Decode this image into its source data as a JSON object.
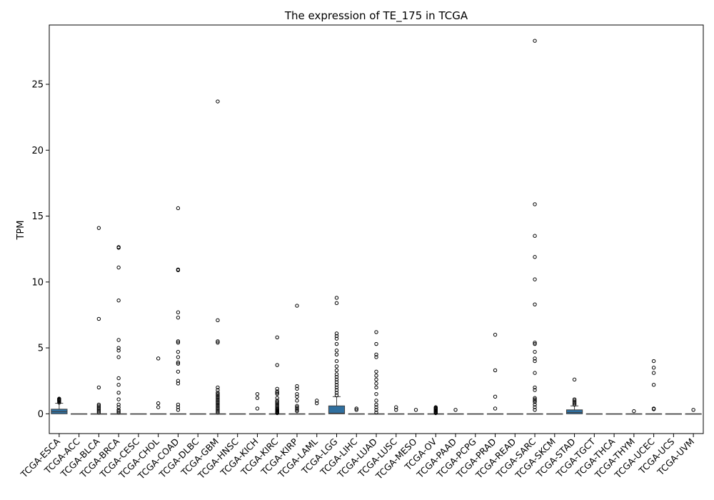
{
  "chart_data": {
    "type": "box",
    "title": "The expression of TE_175 in TCGA",
    "xlabel": "",
    "ylabel": "TPM",
    "ylim": [
      -1.5,
      29.5
    ],
    "yticks": [
      0,
      5,
      10,
      15,
      20,
      25
    ],
    "box_color": "#2f6f9f",
    "categories": [
      "TCGA-ESCA",
      "TCGA-ACC",
      "TCGA-BLCA",
      "TCGA-BRCA",
      "TCGA-CESC",
      "TCGA-CHOL",
      "TCGA-COAD",
      "TCGA-DLBC",
      "TCGA-GBM",
      "TCGA-HNSC",
      "TCGA-KICH",
      "TCGA-KIRC",
      "TCGA-KIRP",
      "TCGA-LAML",
      "TCGA-LGG",
      "TCGA-LIHC",
      "TCGA-LUAD",
      "TCGA-LUSC",
      "TCGA-MESO",
      "TCGA-OV",
      "TCGA-PAAD",
      "TCGA-PCPG",
      "TCGA-PRAD",
      "TCGA-READ",
      "TCGA-SARC",
      "TCGA-SKCM",
      "TCGA-STAD",
      "TCGA-TGCT",
      "TCGA-THCA",
      "TCGA-THYM",
      "TCGA-UCEC",
      "TCGA-UCS",
      "TCGA-UVM"
    ],
    "boxes": [
      {
        "q1": 0.0,
        "median": 0.15,
        "q3": 0.35,
        "whisker_low": 0.0,
        "whisker_high": 0.8
      },
      {
        "q1": 0,
        "median": 0,
        "q3": 0,
        "whisker_low": 0,
        "whisker_high": 0
      },
      {
        "q1": 0,
        "median": 0,
        "q3": 0,
        "whisker_low": 0,
        "whisker_high": 0
      },
      {
        "q1": 0,
        "median": 0,
        "q3": 0,
        "whisker_low": 0,
        "whisker_high": 0
      },
      {
        "q1": 0,
        "median": 0,
        "q3": 0,
        "whisker_low": 0,
        "whisker_high": 0
      },
      {
        "q1": 0,
        "median": 0,
        "q3": 0,
        "whisker_low": 0,
        "whisker_high": 0
      },
      {
        "q1": 0,
        "median": 0,
        "q3": 0,
        "whisker_low": 0,
        "whisker_high": 0
      },
      {
        "q1": 0,
        "median": 0,
        "q3": 0,
        "whisker_low": 0,
        "whisker_high": 0
      },
      {
        "q1": 0,
        "median": 0,
        "q3": 0,
        "whisker_low": 0,
        "whisker_high": 0
      },
      {
        "q1": 0,
        "median": 0,
        "q3": 0,
        "whisker_low": 0,
        "whisker_high": 0
      },
      {
        "q1": 0,
        "median": 0,
        "q3": 0,
        "whisker_low": 0,
        "whisker_high": 0
      },
      {
        "q1": 0,
        "median": 0,
        "q3": 0,
        "whisker_low": 0,
        "whisker_high": 0
      },
      {
        "q1": 0,
        "median": 0,
        "q3": 0,
        "whisker_low": 0,
        "whisker_high": 0
      },
      {
        "q1": 0,
        "median": 0,
        "q3": 0,
        "whisker_low": 0,
        "whisker_high": 0
      },
      {
        "q1": 0.0,
        "median": 0.05,
        "q3": 0.6,
        "whisker_low": 0.0,
        "whisker_high": 1.3
      },
      {
        "q1": 0,
        "median": 0,
        "q3": 0,
        "whisker_low": 0,
        "whisker_high": 0
      },
      {
        "q1": 0,
        "median": 0,
        "q3": 0,
        "whisker_low": 0,
        "whisker_high": 0
      },
      {
        "q1": 0,
        "median": 0,
        "q3": 0,
        "whisker_low": 0,
        "whisker_high": 0
      },
      {
        "q1": 0,
        "median": 0,
        "q3": 0,
        "whisker_low": 0,
        "whisker_high": 0
      },
      {
        "q1": 0,
        "median": 0,
        "q3": 0,
        "whisker_low": 0,
        "whisker_high": 0
      },
      {
        "q1": 0,
        "median": 0,
        "q3": 0,
        "whisker_low": 0,
        "whisker_high": 0
      },
      {
        "q1": 0,
        "median": 0,
        "q3": 0,
        "whisker_low": 0,
        "whisker_high": 0
      },
      {
        "q1": 0,
        "median": 0,
        "q3": 0,
        "whisker_low": 0,
        "whisker_high": 0
      },
      {
        "q1": 0,
        "median": 0,
        "q3": 0,
        "whisker_low": 0,
        "whisker_high": 0
      },
      {
        "q1": 0,
        "median": 0,
        "q3": 0,
        "whisker_low": 0,
        "whisker_high": 0
      },
      {
        "q1": 0,
        "median": 0,
        "q3": 0,
        "whisker_low": 0,
        "whisker_high": 0
      },
      {
        "q1": 0.0,
        "median": 0.1,
        "q3": 0.3,
        "whisker_low": 0.0,
        "whisker_high": 0.6
      },
      {
        "q1": 0,
        "median": 0,
        "q3": 0,
        "whisker_low": 0,
        "whisker_high": 0
      },
      {
        "q1": 0,
        "median": 0,
        "q3": 0,
        "whisker_low": 0,
        "whisker_high": 0
      },
      {
        "q1": 0,
        "median": 0,
        "q3": 0,
        "whisker_low": 0,
        "whisker_high": 0
      },
      {
        "q1": 0,
        "median": 0,
        "q3": 0,
        "whisker_low": 0,
        "whisker_high": 0
      },
      {
        "q1": 0,
        "median": 0,
        "q3": 0,
        "whisker_low": 0,
        "whisker_high": 0
      },
      {
        "q1": 0,
        "median": 0,
        "q3": 0,
        "whisker_low": 0,
        "whisker_high": 0
      }
    ],
    "outliers": [
      [
        0.85,
        0.95,
        1.0,
        1.05,
        1.1,
        1.15
      ],
      [],
      [
        0.1,
        0.2,
        0.3,
        0.4,
        0.5,
        0.6,
        0.7,
        2.0,
        7.2,
        14.1
      ],
      [
        0.1,
        0.2,
        0.3,
        0.5,
        0.7,
        1.1,
        1.6,
        2.2,
        2.7,
        4.3,
        4.8,
        5.0,
        5.6,
        8.6,
        11.1,
        12.6,
        12.65
      ],
      [],
      [
        0.5,
        0.8,
        4.2
      ],
      [
        0.3,
        0.5,
        0.7,
        2.3,
        2.5,
        3.2,
        3.8,
        3.9,
        4.3,
        4.7,
        5.4,
        5.5,
        7.3,
        7.7,
        10.9,
        10.95,
        15.6
      ],
      [],
      [
        0.1,
        0.2,
        0.3,
        0.4,
        0.5,
        0.6,
        0.7,
        0.8,
        0.9,
        1.0,
        1.1,
        1.2,
        1.3,
        1.4,
        1.5,
        1.6,
        1.8,
        2.0,
        5.4,
        5.5,
        7.1,
        23.7
      ],
      [],
      [
        0.4,
        1.2,
        1.5
      ],
      [
        0.05,
        0.1,
        0.15,
        0.2,
        0.25,
        0.3,
        0.35,
        0.4,
        0.5,
        0.6,
        0.7,
        0.8,
        0.9,
        1.0,
        1.2,
        1.5,
        1.6,
        1.7,
        1.9,
        3.7,
        5.8
      ],
      [
        0.2,
        0.3,
        0.4,
        0.5,
        0.6,
        1.0,
        1.3,
        1.5,
        1.9,
        2.1,
        8.2
      ],
      [
        0.8,
        1.0
      ],
      [
        1.4,
        1.6,
        1.8,
        2.0,
        2.2,
        2.4,
        2.6,
        2.8,
        3.0,
        3.3,
        3.6,
        4.0,
        4.5,
        4.8,
        5.3,
        5.7,
        5.9,
        6.1,
        8.4,
        8.8
      ],
      [
        0.3,
        0.4
      ],
      [
        0.1,
        0.3,
        0.5,
        0.7,
        1.0,
        1.5,
        2.0,
        2.3,
        2.6,
        2.9,
        3.2,
        4.3,
        4.5,
        5.3,
        6.2
      ],
      [
        0.3,
        0.5
      ],
      [
        0.3
      ],
      [
        0.05,
        0.1,
        0.15,
        0.2,
        0.25,
        0.3,
        0.35,
        0.4,
        0.45,
        0.5
      ],
      [
        0.3
      ],
      [],
      [
        0.4,
        1.3,
        3.3,
        6.0
      ],
      [],
      [
        0.3,
        0.5,
        0.7,
        0.9,
        1.0,
        1.1,
        1.2,
        1.8,
        2.0,
        3.1,
        4.0,
        4.2,
        4.7,
        5.3,
        5.4,
        8.3,
        10.2,
        11.9,
        13.5,
        15.9,
        28.3
      ],
      [],
      [
        0.7,
        0.8,
        0.9,
        1.0,
        1.1,
        2.6
      ],
      [],
      [],
      [
        0.2
      ],
      [
        0.35,
        0.4,
        2.2,
        3.1,
        3.5,
        4.0
      ],
      [],
      [
        0.3
      ]
    ]
  }
}
